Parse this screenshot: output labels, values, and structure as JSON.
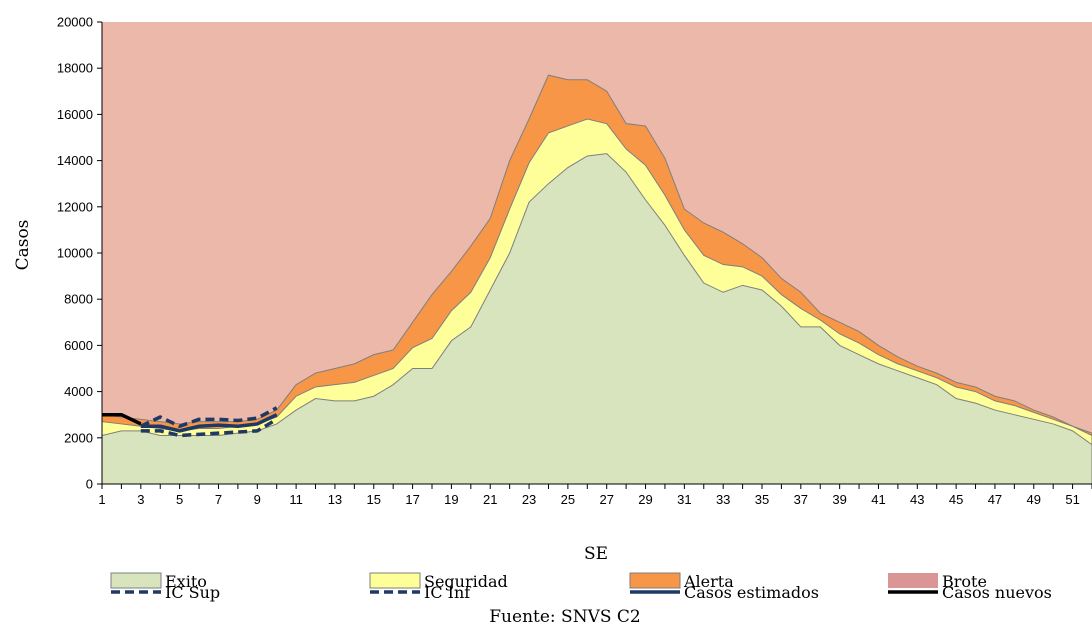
{
  "chart_data": {
    "type": "area",
    "xlabel": "SE",
    "ylabel": "Casos",
    "source": "Fuente: SNVS C2",
    "ylim": [
      0,
      20000
    ],
    "xlim": [
      1,
      52
    ],
    "yticks": [
      0,
      2000,
      4000,
      6000,
      8000,
      10000,
      12000,
      14000,
      16000,
      18000,
      20000
    ],
    "xticks": [
      1,
      3,
      5,
      7,
      9,
      11,
      13,
      15,
      17,
      19,
      21,
      23,
      25,
      27,
      29,
      31,
      33,
      35,
      37,
      39,
      41,
      43,
      45,
      47,
      49,
      51
    ],
    "x": [
      1,
      2,
      3,
      4,
      5,
      6,
      7,
      8,
      9,
      10,
      11,
      12,
      13,
      14,
      15,
      16,
      17,
      18,
      19,
      20,
      21,
      22,
      23,
      24,
      25,
      26,
      27,
      28,
      29,
      30,
      31,
      32,
      33,
      34,
      35,
      36,
      37,
      38,
      39,
      40,
      41,
      42,
      43,
      44,
      45,
      46,
      47,
      48,
      49,
      50,
      51,
      52
    ],
    "series": [
      {
        "name": "Exito",
        "kind": "area-cumulative",
        "color": "#d7e4bd",
        "values": [
          2100,
          2300,
          2300,
          2100,
          2100,
          2100,
          2100,
          2200,
          2300,
          2600,
          3200,
          3700,
          3600,
          3600,
          3800,
          4300,
          5000,
          5000,
          6200,
          6800,
          8400,
          10000,
          12200,
          13000,
          13700,
          14200,
          14300,
          13500,
          12300,
          11200,
          9900,
          8700,
          8300,
          8600,
          8400,
          7700,
          6800,
          6800,
          6000,
          5600,
          5200,
          4900,
          4600,
          4300,
          3700,
          3500,
          3200,
          3000,
          2800,
          2600,
          2300,
          1700
        ]
      },
      {
        "name": "Seguridad",
        "kind": "area-cumulative",
        "color": "#ffff99",
        "values": [
          2700,
          2600,
          2500,
          2400,
          2300,
          2400,
          2400,
          2500,
          2600,
          2900,
          3800,
          4200,
          4300,
          4400,
          4700,
          5000,
          5900,
          6300,
          7500,
          8300,
          9800,
          11900,
          13900,
          15200,
          15500,
          15800,
          15600,
          14500,
          13800,
          12500,
          11000,
          9900,
          9500,
          9400,
          9000,
          8200,
          7600,
          7100,
          6500,
          6100,
          5600,
          5200,
          4900,
          4600,
          4200,
          4000,
          3600,
          3400,
          3100,
          2800,
          2500,
          2100
        ]
      },
      {
        "name": "Alerta",
        "kind": "area-cumulative",
        "color": "#f79646",
        "values": [
          3000,
          2900,
          2800,
          2700,
          2600,
          2700,
          2700,
          2700,
          2800,
          3200,
          4300,
          4800,
          5000,
          5200,
          5600,
          5800,
          7000,
          8200,
          9200,
          10300,
          11500,
          14000,
          15800,
          17700,
          17500,
          17500,
          17000,
          15600,
          15500,
          14100,
          11900,
          11300,
          10900,
          10400,
          9800,
          8900,
          8300,
          7400,
          7000,
          6600,
          6000,
          5500,
          5100,
          4800,
          4400,
          4200,
          3800,
          3600,
          3200,
          2900,
          2500,
          2200
        ]
      },
      {
        "name": "Brote",
        "kind": "area-cumulative",
        "color": "#ecb8aa",
        "legend_color": "#d99694",
        "values": [
          20000,
          20000,
          20000,
          20000,
          20000,
          20000,
          20000,
          20000,
          20000,
          20000,
          20000,
          20000,
          20000,
          20000,
          20000,
          20000,
          20000,
          20000,
          20000,
          20000,
          20000,
          20000,
          20000,
          20000,
          20000,
          20000,
          20000,
          20000,
          20000,
          20000,
          20000,
          20000,
          20000,
          20000,
          20000,
          20000,
          20000,
          20000,
          20000,
          20000,
          20000,
          20000,
          20000,
          20000,
          20000,
          20000,
          20000,
          20000,
          20000,
          20000,
          20000,
          20000
        ]
      },
      {
        "name": "IC Sup",
        "kind": "line-dashed",
        "color": "#1f3864",
        "x": [
          3,
          4,
          5,
          6,
          7,
          8,
          9,
          10
        ],
        "values": [
          2500,
          2900,
          2500,
          2800,
          2800,
          2750,
          2850,
          3300
        ]
      },
      {
        "name": "IC Inf",
        "kind": "line-dashed",
        "color": "#1f3864",
        "x": [
          3,
          4,
          5,
          6,
          7,
          8,
          9,
          10
        ],
        "values": [
          2300,
          2300,
          2100,
          2150,
          2200,
          2250,
          2300,
          2800
        ]
      },
      {
        "name": "Casos estimados",
        "kind": "line",
        "color": "#1f3864",
        "x": [
          3,
          4,
          5,
          6,
          7,
          8,
          9,
          10
        ],
        "values": [
          2500,
          2500,
          2300,
          2500,
          2550,
          2500,
          2600,
          3000
        ]
      },
      {
        "name": "Casos nuevos",
        "kind": "line",
        "color": "#000000",
        "x": [
          1,
          2,
          3
        ],
        "values": [
          3000,
          3000,
          2600
        ]
      }
    ]
  },
  "legend": {
    "exito": "Exito",
    "seguridad": "Seguridad",
    "alerta": "Alerta",
    "brote": "Brote",
    "ic_sup": "IC Sup",
    "ic_inf": "IC Inf",
    "casos_estimados": "Casos estimados",
    "casos_nuevos": "Casos nuevos"
  }
}
